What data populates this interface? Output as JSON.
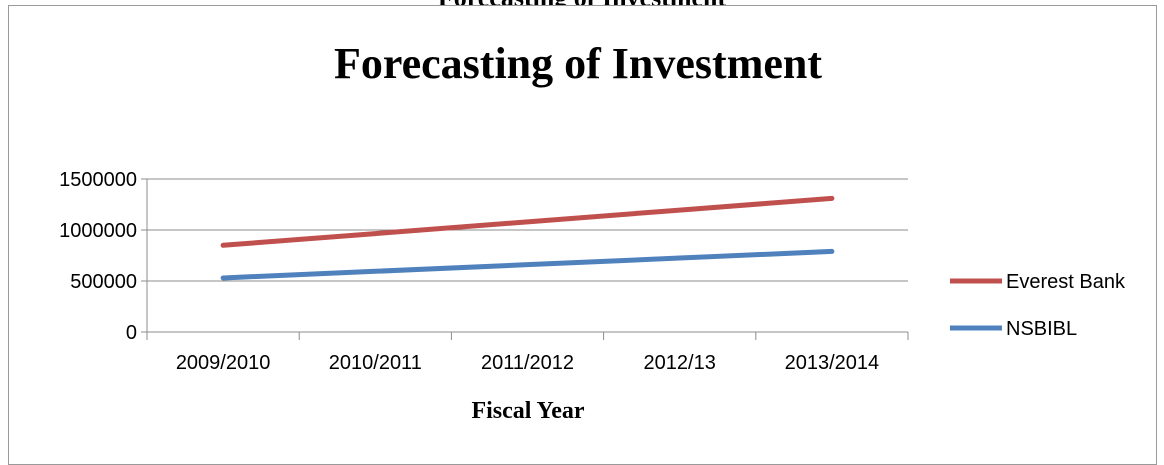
{
  "document": {
    "heading": "Forecasting of Investment"
  },
  "chart_data": {
    "type": "line",
    "title": "Forecasting of Investment",
    "xlabel": "Fiscal Year",
    "ylabel": "",
    "categories": [
      "2009/2010",
      "2010/2011",
      "2011/2012",
      "2012/13",
      "2013/2014"
    ],
    "ylim": [
      0,
      1500000
    ],
    "yticks": [
      0,
      500000,
      1000000,
      1500000
    ],
    "ytick_labels": [
      "0",
      "500000",
      "1000000",
      "1500000"
    ],
    "grid": true,
    "legend": "right",
    "series": [
      {
        "name": "Everest Bank",
        "color": "#c0504d",
        "values": [
          850000,
          965000,
          1080000,
          1195000,
          1310000
        ]
      },
      {
        "name": "NSBIBL",
        "color": "#4f81bd",
        "values": [
          530000,
          595000,
          660000,
          725000,
          790000
        ]
      }
    ]
  }
}
